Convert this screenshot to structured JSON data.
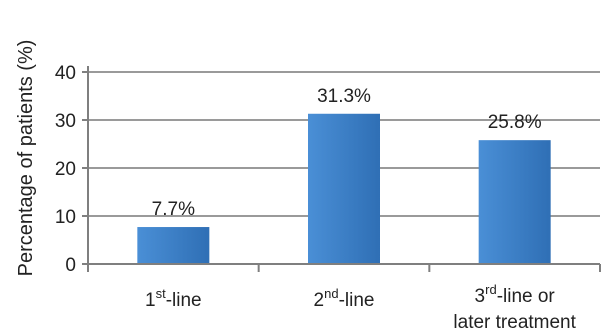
{
  "chart_data": {
    "type": "bar",
    "title": "",
    "xlabel": "",
    "ylabel": "Percentage of patients (%)",
    "ylim": [
      0,
      40
    ],
    "yticks": [
      0,
      10,
      20,
      30,
      40
    ],
    "grid": true,
    "categories": [
      {
        "prefix": "1",
        "sup": "st",
        "suffix": "-line",
        "line2": ""
      },
      {
        "prefix": "2",
        "sup": "nd",
        "suffix": "-line",
        "line2": ""
      },
      {
        "prefix": "3",
        "sup": "rd",
        "suffix": "-line or",
        "line2": "later treatment"
      }
    ],
    "values": [
      7.7,
      31.3,
      25.8
    ],
    "data_labels": [
      "7.7%",
      "31.3%",
      "25.8%"
    ],
    "colors": {
      "bar": "#4a8fd6",
      "bar_dark": "#2f6fb5",
      "grid": "#9a9a9a",
      "axis": "#7f7f7f"
    }
  }
}
